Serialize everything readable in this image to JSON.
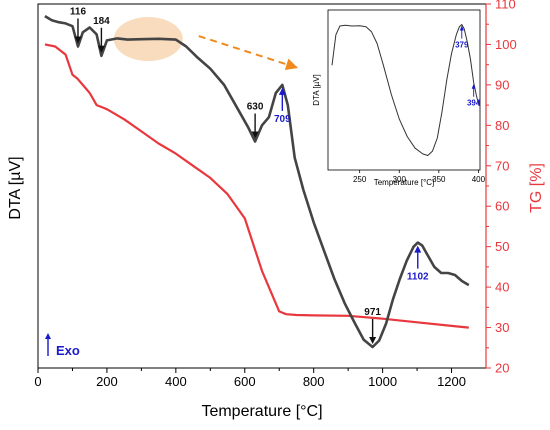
{
  "chart_data": [
    {
      "type": "line",
      "xlabel": "Temperature [°C]",
      "ylabel_left": "DTA [µV]",
      "ylabel_right": "TG [%]",
      "xlim": [
        0,
        1300
      ],
      "x_ticks": [
        0,
        200,
        400,
        600,
        800,
        1000,
        1200
      ],
      "y_right_lim": [
        20,
        110
      ],
      "y_right_ticks": [
        20,
        30,
        40,
        50,
        60,
        70,
        80,
        90,
        100,
        110
      ],
      "grid": false,
      "exo_label": "Exo",
      "colors": {
        "dta": "#444444",
        "tg": "#e8383d",
        "annotation_black": "#111111",
        "annotation_blue": "#1a1acc",
        "highlight": "#f5c99a",
        "dashed_arrow": "#f08a1f"
      },
      "series": [
        {
          "key": "dta",
          "axis": "left",
          "x": [
            20,
            40,
            60,
            80,
            100,
            116,
            130,
            150,
            170,
            184,
            200,
            230,
            260,
            300,
            350,
            400,
            430,
            460,
            500,
            540,
            580,
            610,
            630,
            650,
            670,
            690,
            709,
            725,
            745,
            770,
            800,
            830,
            860,
            890,
            920,
            945,
            971,
            990,
            1010,
            1030,
            1050,
            1070,
            1090,
            1102,
            1115,
            1130,
            1150,
            1170,
            1190,
            1210,
            1230,
            1250
          ],
          "values": [
            107,
            106,
            105.5,
            105.2,
            104.5,
            99.5,
            103,
            104.2,
            102.5,
            97.2,
            101,
            101.5,
            101.2,
            101.3,
            101.4,
            101.2,
            99.5,
            97,
            94,
            90,
            84,
            79.5,
            76,
            80,
            82,
            88,
            90,
            85,
            72,
            64,
            56,
            49,
            42,
            36,
            31,
            27,
            25.2,
            26.8,
            31,
            37,
            42,
            46.5,
            50,
            51,
            50.3,
            48,
            45,
            43.5,
            43.5,
            43,
            41.5,
            40.5
          ]
        },
        {
          "key": "tg",
          "axis": "right",
          "x": [
            20,
            50,
            80,
            100,
            115,
            130,
            150,
            170,
            185,
            200,
            250,
            300,
            350,
            400,
            450,
            500,
            550,
            600,
            650,
            680,
            700,
            720,
            750,
            800,
            900,
            1000,
            1100,
            1200,
            1250
          ],
          "values": [
            100,
            99.5,
            97.5,
            92.5,
            91.5,
            90,
            88,
            85,
            84.5,
            84,
            81.5,
            78.5,
            75.5,
            73,
            70,
            67,
            63,
            57,
            44,
            38,
            34,
            33.3,
            33.1,
            33,
            32.9,
            32.2,
            31.3,
            30.4,
            30
          ]
        }
      ],
      "annotations": [
        {
          "label": "116",
          "x": 116,
          "series": "dta",
          "color": "annotation_black",
          "direction": "down"
        },
        {
          "label": "184",
          "x": 184,
          "series": "dta",
          "color": "annotation_black",
          "direction": "down"
        },
        {
          "label": "630",
          "x": 630,
          "series": "dta",
          "color": "annotation_black",
          "direction": "down"
        },
        {
          "label": "709",
          "x": 709,
          "series": "dta",
          "color": "annotation_blue",
          "direction": "up"
        },
        {
          "label": "971",
          "x": 971,
          "series": "dta",
          "color": "annotation_black",
          "direction": "down"
        },
        {
          "label": "1102",
          "x": 1102,
          "series": "dta",
          "color": "annotation_blue",
          "direction": "up"
        }
      ],
      "highlight_region": {
        "x": [
          220,
          420
        ],
        "note": "shaded ellipse on DTA curve, magnified in inset"
      }
    },
    {
      "type": "line",
      "role": "inset",
      "xlabel": "Temperature [°C]",
      "ylabel": "DTA [µV]",
      "xlim": [
        210,
        402
      ],
      "x_ticks": [
        250,
        300,
        350,
        400
      ],
      "series": [
        {
          "key": "dta_zoom",
          "x": [
            215,
            220,
            225,
            232,
            240,
            250,
            258,
            265,
            272,
            280,
            290,
            300,
            310,
            320,
            330,
            336,
            342,
            348,
            354,
            360,
            366,
            372,
            376,
            379,
            382,
            386,
            390,
            394,
            398,
            401
          ],
          "values": [
            72,
            93,
            99,
            99.5,
            99,
            99.2,
            98.5,
            95,
            87,
            72,
            52,
            35,
            23,
            15,
            11,
            10,
            13,
            22,
            40,
            62,
            80,
            93,
            98.5,
            100,
            97,
            88,
            76,
            60,
            50,
            44
          ]
        }
      ],
      "annotations": [
        {
          "label": "379",
          "x": 379,
          "color": "annotation_blue",
          "direction": "up"
        },
        {
          "label": "394",
          "x": 394,
          "color": "annotation_blue",
          "direction": "up"
        }
      ]
    }
  ]
}
